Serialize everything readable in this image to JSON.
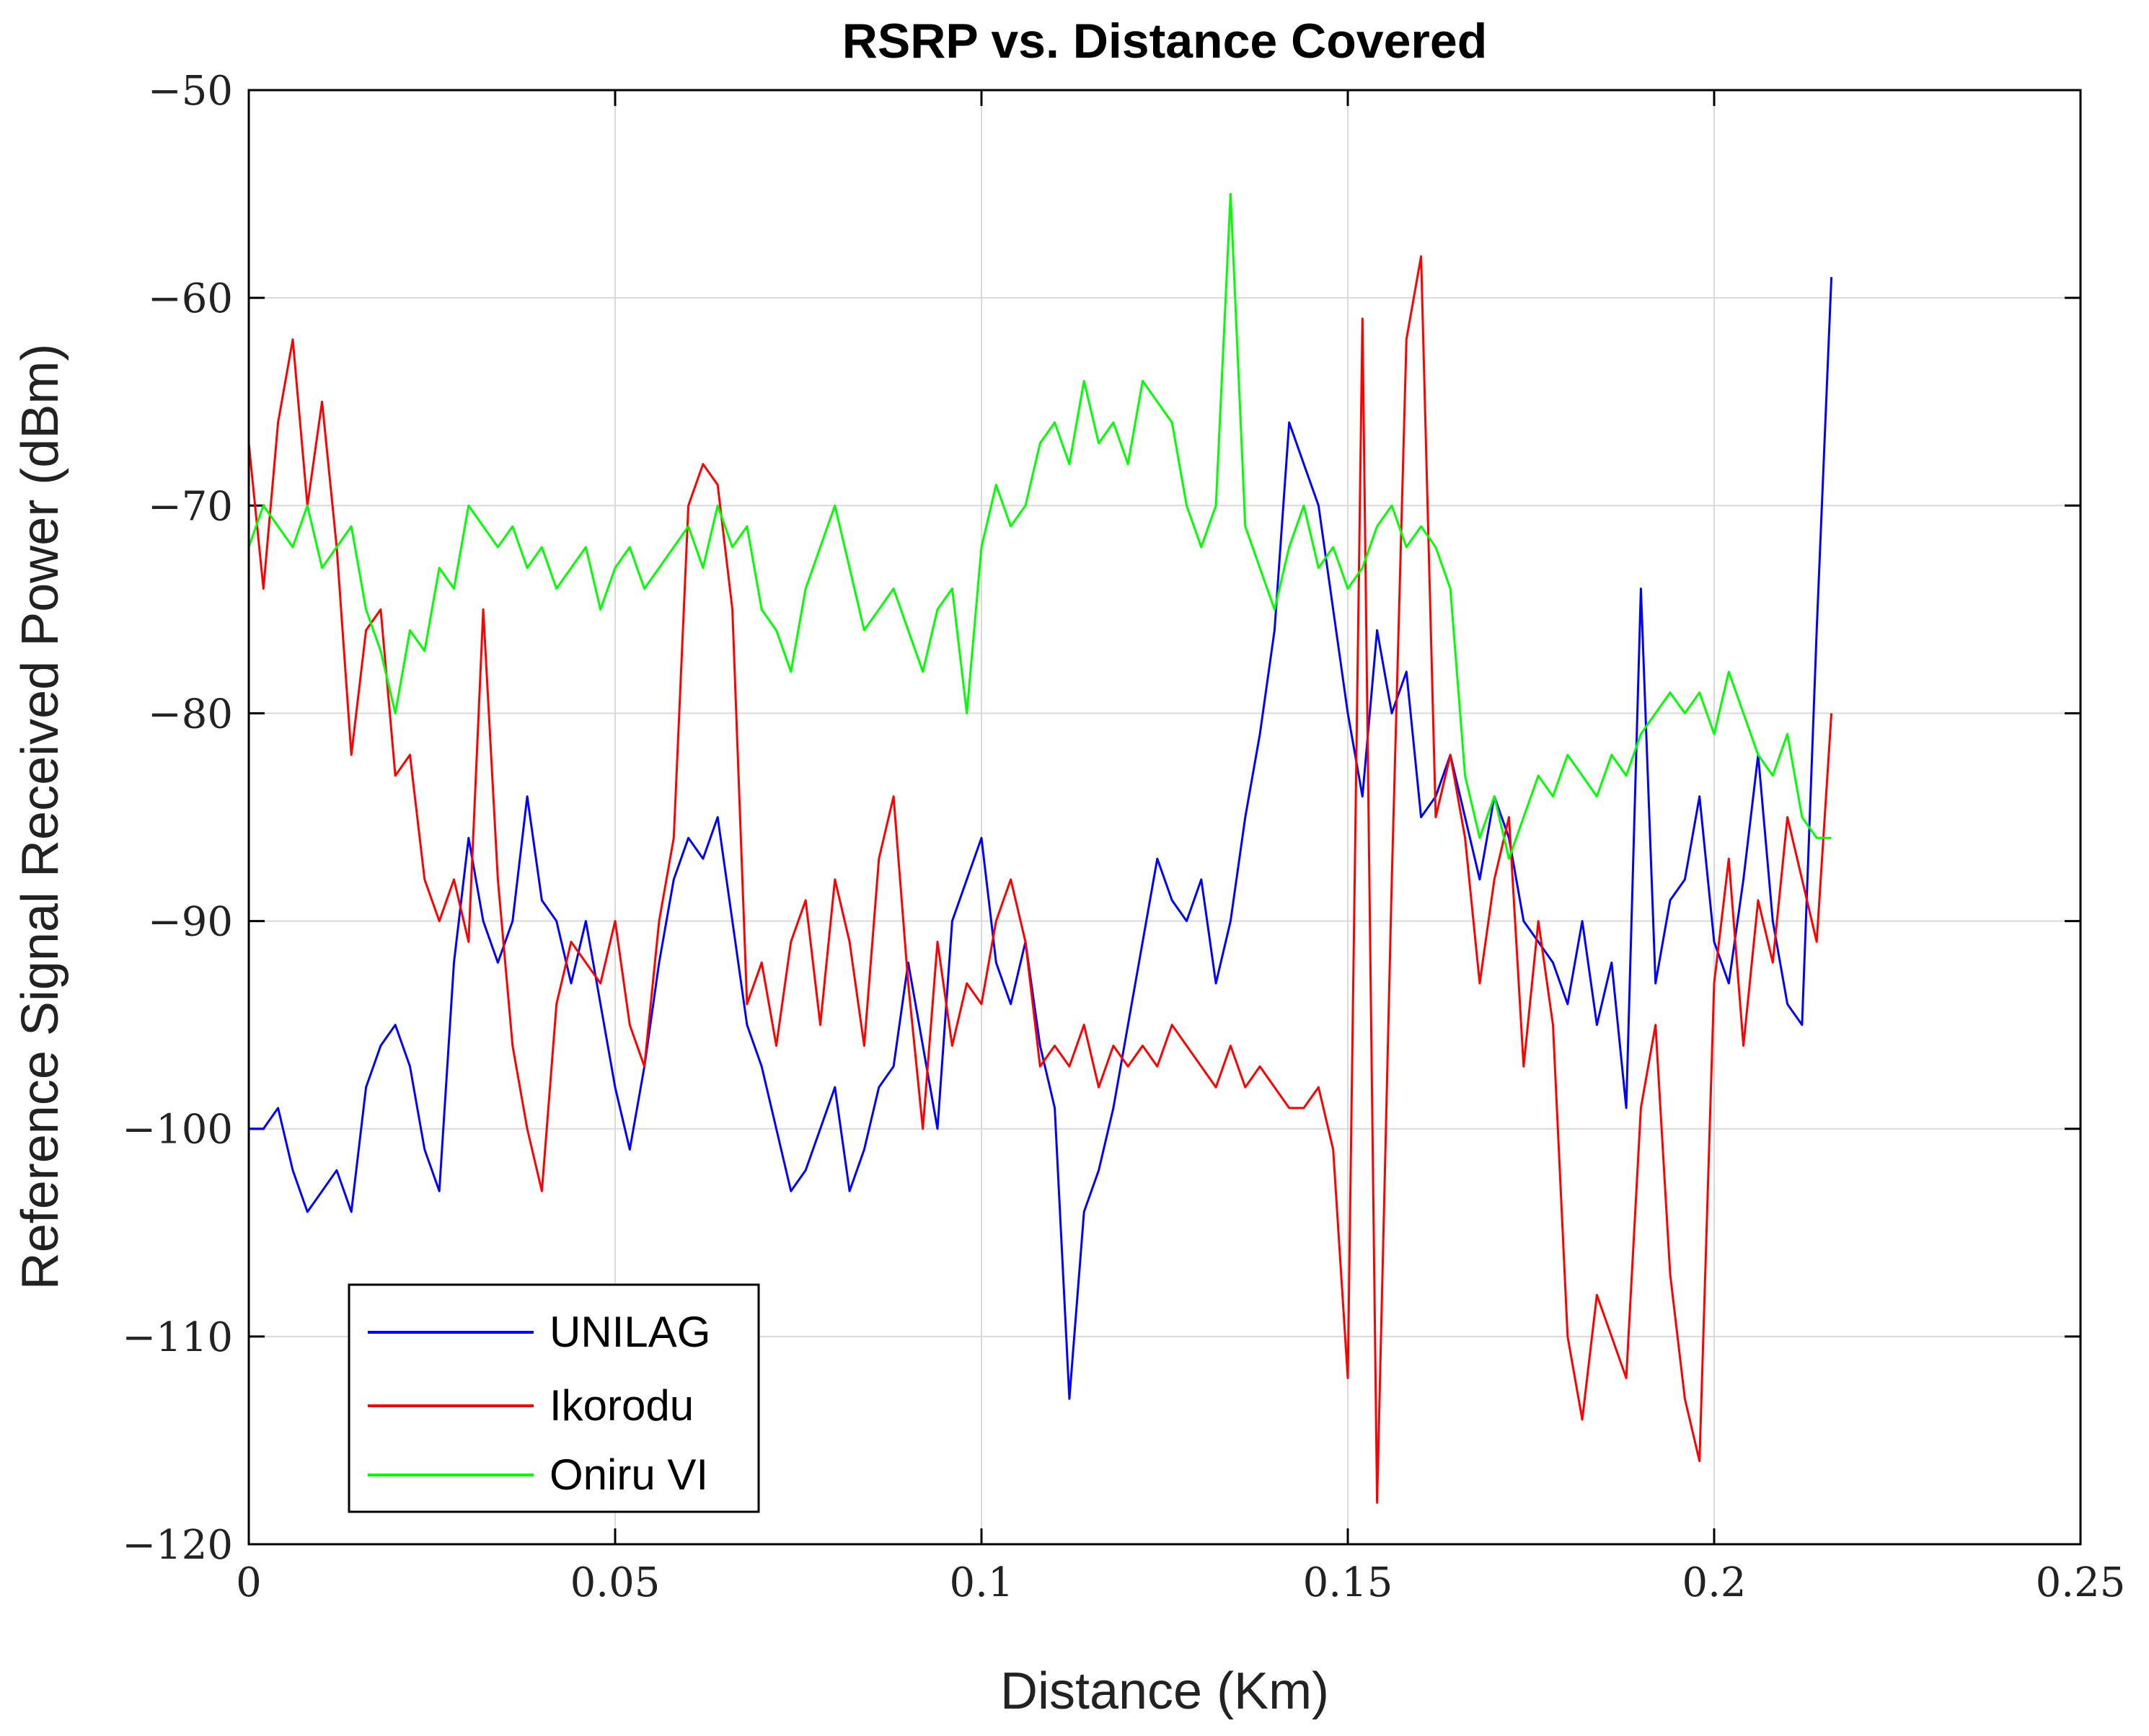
{
  "chart_data": {
    "type": "line",
    "title": "RSRP vs. Distance Covered",
    "xlabel": "Distance (Km)",
    "ylabel": "Reference Signal Received Power (dBm)",
    "xlim": [
      0,
      0.25
    ],
    "ylim": [
      -120,
      -50
    ],
    "xticks": [
      0,
      0.05,
      0.1,
      0.15,
      0.2,
      0.25
    ],
    "xtick_labels": [
      "0",
      "0.05",
      "0.1",
      "0.15",
      "0.2",
      "0.25"
    ],
    "yticks": [
      -120,
      -110,
      -100,
      -90,
      -80,
      -70,
      -60,
      -50
    ],
    "ytick_labels": [
      "−120",
      "−110",
      "−100",
      "−90",
      "−80",
      "−70",
      "−60",
      "−50"
    ],
    "grid": true,
    "legend_position": "bottom-left",
    "series": [
      {
        "name": "UNILAG",
        "color": "#0000ff",
        "x": [
          0,
          0.002,
          0.004,
          0.006,
          0.008,
          0.01,
          0.012,
          0.014,
          0.016,
          0.018,
          0.02,
          0.022,
          0.024,
          0.026,
          0.028,
          0.03,
          0.032,
          0.034,
          0.036,
          0.038,
          0.04,
          0.042,
          0.044,
          0.046,
          0.048,
          0.05,
          0.052,
          0.054,
          0.056,
          0.058,
          0.06,
          0.062,
          0.064,
          0.066,
          0.068,
          0.07,
          0.072,
          0.074,
          0.076,
          0.078,
          0.08,
          0.082,
          0.084,
          0.086,
          0.088,
          0.09,
          0.092,
          0.094,
          0.096,
          0.098,
          0.1,
          0.102,
          0.104,
          0.106,
          0.108,
          0.11,
          0.112,
          0.114,
          0.116,
          0.118,
          0.12,
          0.122,
          0.124,
          0.126,
          0.128,
          0.13,
          0.132,
          0.134,
          0.136,
          0.138,
          0.14,
          0.142,
          0.144,
          0.146,
          0.148,
          0.15,
          0.152,
          0.154,
          0.156,
          0.158,
          0.16,
          0.162,
          0.164,
          0.166,
          0.168,
          0.17,
          0.172,
          0.174,
          0.176,
          0.178,
          0.18,
          0.182,
          0.184,
          0.186,
          0.188,
          0.19,
          0.192,
          0.194,
          0.196,
          0.198,
          0.2,
          0.202,
          0.204,
          0.206,
          0.208,
          0.21,
          0.212,
          0.214,
          0.216
        ],
        "values": [
          -100,
          -100,
          -99,
          -102,
          -104,
          -103,
          -102,
          -104,
          -98,
          -96,
          -95,
          -97,
          -101,
          -103,
          -92,
          -86,
          -90,
          -92,
          -90,
          -84,
          -89,
          -90,
          -93,
          -90,
          -94,
          -98,
          -101,
          -97,
          -92,
          -88,
          -86,
          -87,
          -85,
          -90,
          -95,
          -97,
          -100,
          -103,
          -102,
          -100,
          -98,
          -103,
          -101,
          -98,
          -97,
          -92,
          -96,
          -100,
          -90,
          -88,
          -86,
          -92,
          -94,
          -91,
          -96,
          -99,
          -113,
          -104,
          -102,
          -99,
          -95,
          -91,
          -87,
          -89,
          -90,
          -88,
          -93,
          -90,
          -85,
          -81,
          -76,
          -66,
          -68,
          -70,
          -75,
          -80,
          -84,
          -76,
          -80,
          -78,
          -85,
          -84,
          -82,
          -85,
          -88,
          -84,
          -86,
          -90,
          -91,
          -92,
          -94,
          -90,
          -95,
          -92,
          -99,
          -74,
          -93,
          -89,
          -88,
          -84,
          -91,
          -93,
          -88,
          -82,
          -90,
          -94,
          -95,
          -76,
          -59
        ]
      },
      {
        "name": "Ikorodu",
        "color": "#ff0000",
        "x": [
          0,
          0.002,
          0.004,
          0.006,
          0.008,
          0.01,
          0.012,
          0.014,
          0.016,
          0.018,
          0.02,
          0.022,
          0.024,
          0.026,
          0.028,
          0.03,
          0.032,
          0.034,
          0.036,
          0.038,
          0.04,
          0.042,
          0.044,
          0.046,
          0.048,
          0.05,
          0.052,
          0.054,
          0.056,
          0.058,
          0.06,
          0.062,
          0.064,
          0.066,
          0.068,
          0.07,
          0.072,
          0.074,
          0.076,
          0.078,
          0.08,
          0.082,
          0.084,
          0.086,
          0.088,
          0.09,
          0.092,
          0.094,
          0.096,
          0.098,
          0.1,
          0.102,
          0.104,
          0.106,
          0.108,
          0.11,
          0.112,
          0.114,
          0.116,
          0.118,
          0.12,
          0.122,
          0.124,
          0.126,
          0.128,
          0.13,
          0.132,
          0.134,
          0.136,
          0.138,
          0.14,
          0.142,
          0.144,
          0.146,
          0.148,
          0.15,
          0.152,
          0.154,
          0.156,
          0.158,
          0.16,
          0.162,
          0.164,
          0.166,
          0.168,
          0.17,
          0.172,
          0.174,
          0.176,
          0.178,
          0.18,
          0.182,
          0.184,
          0.186,
          0.188,
          0.19,
          0.192,
          0.194,
          0.196,
          0.198,
          0.2,
          0.202,
          0.204,
          0.206,
          0.208,
          0.21,
          0.212,
          0.214,
          0.216
        ],
        "values": [
          -67,
          -74,
          -66,
          -62,
          -70,
          -65,
          -72,
          -82,
          -76,
          -75,
          -83,
          -82,
          -88,
          -90,
          -88,
          -91,
          -75,
          -88,
          -96,
          -100,
          -103,
          -94,
          -91,
          -92,
          -93,
          -90,
          -95,
          -97,
          -90,
          -86,
          -70,
          -68,
          -69,
          -75,
          -94,
          -92,
          -96,
          -91,
          -89,
          -95,
          -88,
          -91,
          -96,
          -87,
          -84,
          -93,
          -100,
          -91,
          -96,
          -93,
          -94,
          -90,
          -88,
          -91,
          -97,
          -96,
          -97,
          -95,
          -98,
          -96,
          -97,
          -96,
          -97,
          -95,
          -96,
          -97,
          -98,
          -96,
          -98,
          -97,
          -98,
          -99,
          -99,
          -98,
          -101,
          -112,
          -61,
          -118,
          -88,
          -62,
          -58,
          -85,
          -82,
          -86,
          -93,
          -88,
          -85,
          -97,
          -90,
          -95,
          -110,
          -114,
          -108,
          -110,
          -112,
          -99,
          -95,
          -107,
          -113,
          -116,
          -93,
          -87,
          -96,
          -89,
          -92,
          -85,
          -88,
          -91,
          -80
        ]
      },
      {
        "name": "Oniru VI",
        "color": "#00ff00",
        "x": [
          0,
          0.002,
          0.004,
          0.006,
          0.008,
          0.01,
          0.012,
          0.014,
          0.016,
          0.018,
          0.02,
          0.022,
          0.024,
          0.026,
          0.028,
          0.03,
          0.032,
          0.034,
          0.036,
          0.038,
          0.04,
          0.042,
          0.044,
          0.046,
          0.048,
          0.05,
          0.052,
          0.054,
          0.056,
          0.058,
          0.06,
          0.062,
          0.064,
          0.066,
          0.068,
          0.07,
          0.072,
          0.074,
          0.076,
          0.078,
          0.08,
          0.082,
          0.084,
          0.086,
          0.088,
          0.09,
          0.092,
          0.094,
          0.096,
          0.098,
          0.1,
          0.102,
          0.104,
          0.106,
          0.108,
          0.11,
          0.112,
          0.114,
          0.116,
          0.118,
          0.12,
          0.122,
          0.124,
          0.126,
          0.128,
          0.13,
          0.132,
          0.134,
          0.136,
          0.138,
          0.14,
          0.142,
          0.144,
          0.146,
          0.148,
          0.15,
          0.152,
          0.154,
          0.156,
          0.158,
          0.16,
          0.162,
          0.164,
          0.166,
          0.168,
          0.17,
          0.172,
          0.174,
          0.176,
          0.178,
          0.18,
          0.182,
          0.184,
          0.186,
          0.188,
          0.19,
          0.192,
          0.194,
          0.196,
          0.198,
          0.2,
          0.202,
          0.204,
          0.206,
          0.208,
          0.21,
          0.212,
          0.214,
          0.216
        ],
        "values": [
          -72,
          -70,
          -71,
          -72,
          -70,
          -73,
          -72,
          -71,
          -75,
          -77,
          -80,
          -76,
          -77,
          -73,
          -74,
          -70,
          -71,
          -72,
          -71,
          -73,
          -72,
          -74,
          -73,
          -72,
          -75,
          -73,
          -72,
          -74,
          -73,
          -72,
          -71,
          -73,
          -70,
          -72,
          -71,
          -75,
          -76,
          -78,
          -74,
          -72,
          -70,
          -73,
          -76,
          -75,
          -74,
          -76,
          -78,
          -75,
          -74,
          -80,
          -72,
          -69,
          -71,
          -70,
          -67,
          -66,
          -68,
          -64,
          -67,
          -66,
          -68,
          -64,
          -65,
          -66,
          -70,
          -72,
          -70,
          -55,
          -71,
          -73,
          -75,
          -72,
          -70,
          -73,
          -72,
          -74,
          -73,
          -71,
          -70,
          -72,
          -71,
          -72,
          -74,
          -83,
          -86,
          -84,
          -87,
          -85,
          -83,
          -84,
          -82,
          -83,
          -84,
          -82,
          -83,
          -81,
          -80,
          -79,
          -80,
          -79,
          -81,
          -78,
          -80,
          -82,
          -83,
          -81,
          -85,
          -86,
          -86
        ]
      }
    ]
  }
}
